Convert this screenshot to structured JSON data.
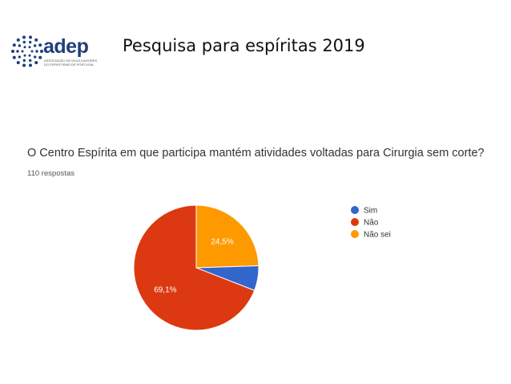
{
  "slide": {
    "title": "Pesquisa para espíritas  2019"
  },
  "logo": {
    "name": "adep",
    "subtitle": "ASSOCIAÇÃO DE DIVULGADORES DO ESPIRITISMO DE PORTUGAL"
  },
  "chart_data": {
    "type": "pie",
    "title": "O Centro Espírita em que participa mantém atividades voltadas para Cirurgia sem corte?",
    "subtitle": "110 respostas",
    "categories": [
      "Sim",
      "Não",
      "Não sei"
    ],
    "values": [
      6.4,
      69.1,
      24.5
    ],
    "data_labels": [
      "",
      "69,1%",
      "24,5%"
    ],
    "colors": [
      "#3366cc",
      "#dc3912",
      "#ff9900"
    ],
    "legend_position": "right"
  }
}
